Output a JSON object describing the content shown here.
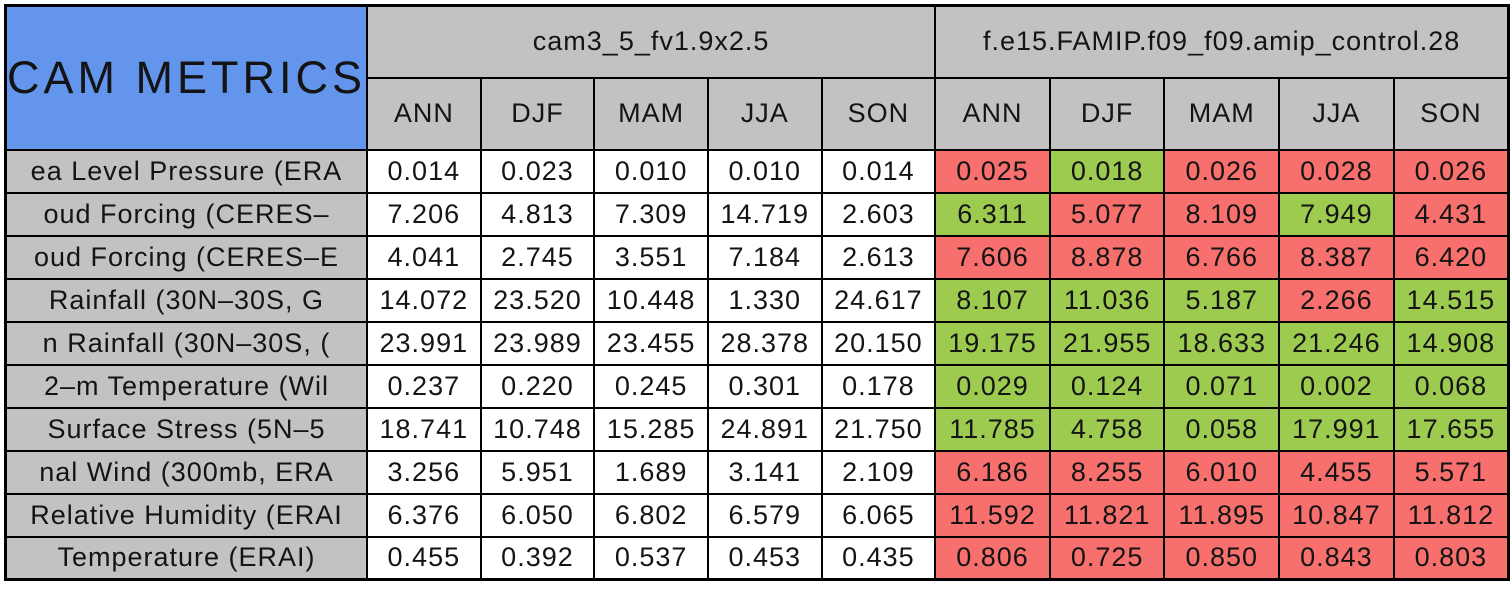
{
  "title": "CAM METRICS",
  "colors": {
    "header_blue": "#6495ED",
    "header_gray": "#C2C2C2",
    "cell_white": "#FFFFFF",
    "cell_red": "#F7706D",
    "cell_green": "#9DCB50",
    "border_black": "#000000"
  },
  "chart_data": {
    "type": "table",
    "title": "CAM METRICS",
    "column_groups": [
      "cam3_5_fv1.9x2.5",
      "f.e15.FAMIP.f09_f09.amip_control.28"
    ],
    "seasons": [
      "ANN",
      "DJF",
      "MAM",
      "JJA",
      "SON"
    ],
    "rows": [
      {
        "label": "ea Level Pressure (ERA",
        "baseline_values": [
          "0.014",
          "0.023",
          "0.010",
          "0.010",
          "0.014"
        ],
        "test_values": [
          "0.025",
          "0.018",
          "0.026",
          "0.028",
          "0.026"
        ],
        "test_cell_colors": [
          "red",
          "green",
          "red",
          "red",
          "red"
        ]
      },
      {
        "label": "oud Forcing (CERES–",
        "baseline_values": [
          "7.206",
          "4.813",
          "7.309",
          "14.719",
          "2.603"
        ],
        "test_values": [
          "6.311",
          "5.077",
          "8.109",
          "7.949",
          "4.431"
        ],
        "test_cell_colors": [
          "green",
          "red",
          "red",
          "green",
          "red"
        ]
      },
      {
        "label": "oud Forcing (CERES–E",
        "baseline_values": [
          "4.041",
          "2.745",
          "3.551",
          "7.184",
          "2.613"
        ],
        "test_values": [
          "7.606",
          "8.878",
          "6.766",
          "8.387",
          "6.420"
        ],
        "test_cell_colors": [
          "red",
          "red",
          "red",
          "red",
          "red"
        ]
      },
      {
        "label": "Rainfall (30N–30S, G",
        "baseline_values": [
          "14.072",
          "23.520",
          "10.448",
          "1.330",
          "24.617"
        ],
        "test_values": [
          "8.107",
          "11.036",
          "5.187",
          "2.266",
          "14.515"
        ],
        "test_cell_colors": [
          "green",
          "green",
          "green",
          "red",
          "green"
        ]
      },
      {
        "label": "n Rainfall (30N–30S, (",
        "baseline_values": [
          "23.991",
          "23.989",
          "23.455",
          "28.378",
          "20.150"
        ],
        "test_values": [
          "19.175",
          "21.955",
          "18.633",
          "21.246",
          "14.908"
        ],
        "test_cell_colors": [
          "green",
          "green",
          "green",
          "green",
          "green"
        ]
      },
      {
        "label": "2–m Temperature (Wil",
        "baseline_values": [
          "0.237",
          "0.220",
          "0.245",
          "0.301",
          "0.178"
        ],
        "test_values": [
          "0.029",
          "0.124",
          "0.071",
          "0.002",
          "0.068"
        ],
        "test_cell_colors": [
          "green",
          "green",
          "green",
          "green",
          "green"
        ]
      },
      {
        "label": "Surface Stress (5N–5",
        "baseline_values": [
          "18.741",
          "10.748",
          "15.285",
          "24.891",
          "21.750"
        ],
        "test_values": [
          "11.785",
          "4.758",
          "0.058",
          "17.991",
          "17.655"
        ],
        "test_cell_colors": [
          "green",
          "green",
          "green",
          "green",
          "green"
        ]
      },
      {
        "label": "nal Wind (300mb, ERA",
        "baseline_values": [
          "3.256",
          "5.951",
          "1.689",
          "3.141",
          "2.109"
        ],
        "test_values": [
          "6.186",
          "8.255",
          "6.010",
          "4.455",
          "5.571"
        ],
        "test_cell_colors": [
          "red",
          "red",
          "red",
          "red",
          "red"
        ]
      },
      {
        "label": "Relative Humidity (ERAI",
        "baseline_values": [
          "6.376",
          "6.050",
          "6.802",
          "6.579",
          "6.065"
        ],
        "test_values": [
          "11.592",
          "11.821",
          "11.895",
          "10.847",
          "11.812"
        ],
        "test_cell_colors": [
          "red",
          "red",
          "red",
          "red",
          "red"
        ]
      },
      {
        "label": "Temperature (ERAI)",
        "baseline_values": [
          "0.455",
          "0.392",
          "0.537",
          "0.453",
          "0.435"
        ],
        "test_values": [
          "0.806",
          "0.725",
          "0.850",
          "0.843",
          "0.803"
        ],
        "test_cell_colors": [
          "red",
          "red",
          "red",
          "red",
          "red"
        ]
      }
    ]
  }
}
